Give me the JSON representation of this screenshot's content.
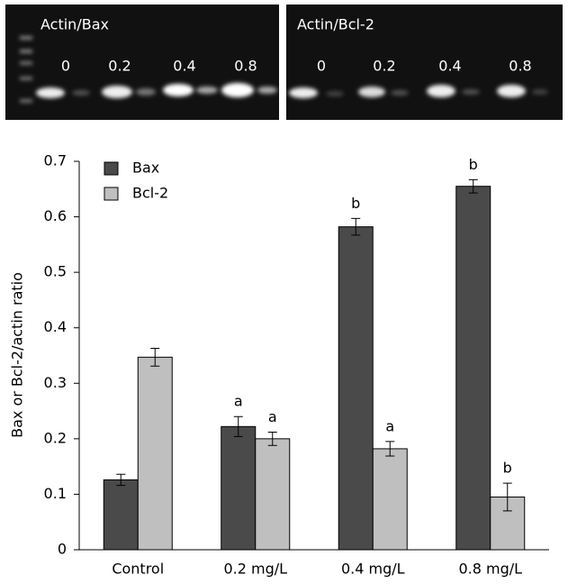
{
  "gel_panels": [
    {
      "title": "Actin/Bax",
      "lanes": [
        "0",
        "0.2",
        "0.4",
        "0.8"
      ]
    },
    {
      "title": "Actin/Bcl-2",
      "lanes": [
        "0",
        "0.2",
        "0.4",
        "0.8"
      ]
    }
  ],
  "chart_data": {
    "type": "bar",
    "y_label": "Bax or Bcl-2/actin ratio",
    "categories": [
      "Control",
      "0.2 mg/L",
      "0.4 mg/L",
      "0.8 mg/L"
    ],
    "series": [
      {
        "name": "Bax",
        "color": "#4a4a4a",
        "values": [
          0.126,
          0.222,
          0.582,
          0.655
        ],
        "errors": [
          0.01,
          0.018,
          0.015,
          0.012
        ],
        "annotations": [
          null,
          "a",
          "b",
          "b"
        ]
      },
      {
        "name": "Bcl-2",
        "color": "#bfbfbf",
        "values": [
          0.347,
          0.2,
          0.182,
          0.095
        ],
        "errors": [
          0.016,
          0.012,
          0.013,
          0.025
        ],
        "annotations": [
          null,
          "a",
          "a",
          "b"
        ]
      }
    ],
    "ylim": [
      0,
      0.7
    ],
    "yticks": [
      0,
      0.1,
      0.2,
      0.3,
      0.4,
      0.5,
      0.6,
      0.7
    ],
    "legend": "upper-left"
  }
}
